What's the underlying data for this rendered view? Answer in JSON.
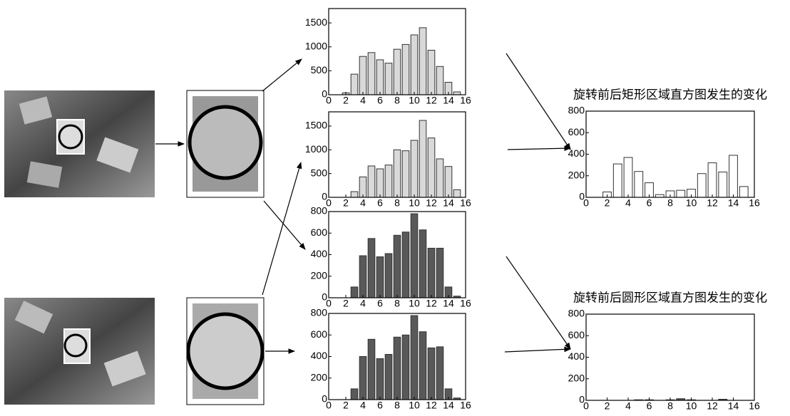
{
  "chart_data": [
    {
      "type": "bar",
      "x": [
        2,
        3,
        4,
        5,
        6,
        7,
        8,
        9,
        10,
        11,
        12,
        13,
        14,
        15
      ],
      "values": [
        40,
        430,
        800,
        880,
        730,
        660,
        950,
        1050,
        1250,
        1400,
        930,
        590,
        260,
        60
      ],
      "color": "#d9d9d9",
      "xlim": [
        0,
        16
      ],
      "xticks": [
        0,
        2,
        4,
        6,
        8,
        10,
        12,
        14,
        16
      ],
      "ylim": [
        0,
        1800
      ],
      "yticks": [
        0,
        500,
        1000,
        1500
      ]
    },
    {
      "type": "bar",
      "x": [
        3,
        4,
        5,
        6,
        7,
        8,
        9,
        10,
        11,
        12,
        13,
        14,
        15
      ],
      "values": [
        120,
        430,
        660,
        600,
        680,
        1000,
        980,
        1200,
        1620,
        1250,
        810,
        650,
        160
      ],
      "color": "#d9d9d9",
      "xlim": [
        0,
        16
      ],
      "xticks": [
        0,
        2,
        4,
        6,
        8,
        10,
        12,
        14,
        16
      ],
      "ylim": [
        0,
        1800
      ],
      "yticks": [
        0,
        500,
        1000,
        1500
      ]
    },
    {
      "type": "bar",
      "x": [
        3,
        4,
        5,
        6,
        7,
        8,
        9,
        10,
        11,
        12,
        13,
        14,
        15
      ],
      "values": [
        100,
        390,
        550,
        380,
        410,
        580,
        610,
        780,
        630,
        460,
        460,
        100,
        15
      ],
      "color": "#595959",
      "xlim": [
        0,
        16
      ],
      "xticks": [
        0,
        2,
        4,
        6,
        8,
        10,
        12,
        14,
        16
      ],
      "ylim": [
        0,
        800
      ],
      "yticks": [
        0,
        200,
        400,
        600,
        800
      ]
    },
    {
      "type": "bar",
      "x": [
        3,
        4,
        5,
        6,
        7,
        8,
        9,
        10,
        11,
        12,
        13,
        14,
        15
      ],
      "values": [
        100,
        400,
        560,
        380,
        420,
        580,
        600,
        780,
        630,
        480,
        490,
        100,
        15
      ],
      "color": "#595959",
      "xlim": [
        0,
        16
      ],
      "xticks": [
        0,
        2,
        4,
        6,
        8,
        10,
        12,
        14,
        16
      ],
      "ylim": [
        0,
        800
      ],
      "yticks": [
        0,
        200,
        400,
        600,
        800
      ]
    },
    {
      "type": "bar",
      "title": "旋转前后矩形区域直方图发生的变化",
      "x": [
        2,
        3,
        4,
        5,
        6,
        7,
        8,
        9,
        10,
        11,
        12,
        13,
        14,
        15
      ],
      "values": [
        50,
        310,
        370,
        240,
        135,
        25,
        60,
        65,
        75,
        220,
        320,
        235,
        390,
        100
      ],
      "color": "#ffffff",
      "xlim": [
        0,
        16
      ],
      "xticks": [
        0,
        2,
        4,
        6,
        8,
        10,
        12,
        14,
        16
      ],
      "ylim": [
        0,
        800
      ],
      "yticks": [
        0,
        200,
        400,
        600,
        800
      ]
    },
    {
      "type": "bar",
      "title": "旋转前后圆形区域直方图发生的变化",
      "x": [
        2,
        3,
        4,
        5,
        6,
        7,
        8,
        9,
        10,
        11,
        12,
        13,
        14,
        15
      ],
      "values": [
        0,
        0,
        0,
        5,
        5,
        0,
        5,
        15,
        5,
        0,
        0,
        10,
        0,
        0
      ],
      "color": "#595959",
      "xlim": [
        0,
        16
      ],
      "xticks": [
        0,
        2,
        4,
        6,
        8,
        10,
        12,
        14,
        16
      ],
      "ylim": [
        0,
        800
      ],
      "yticks": [
        0,
        200,
        400,
        600,
        800
      ]
    }
  ]
}
